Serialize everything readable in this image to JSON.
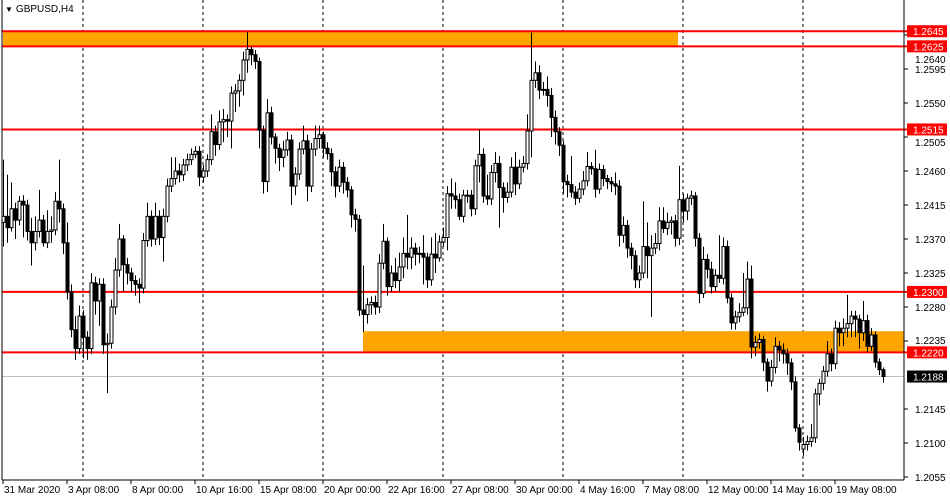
{
  "header": {
    "symbol_timeframe": "GBPUSD,H4",
    "menu_icon": "triangle-down-icon"
  },
  "chart_data": {
    "type": "candlestick",
    "title": "GBPUSD,H4",
    "ylim": [
      1.2055,
      1.269
    ],
    "y_ticks": [
      "1.2640",
      "1.2595",
      "1.2550",
      "1.2505",
      "1.2460",
      "1.2415",
      "1.2370",
      "1.2325",
      "1.2280",
      "1.2235",
      "1.2145",
      "1.2100",
      "1.2055"
    ],
    "x_tick_labels": [
      "31 Mar 2020",
      "3 Apr 08:00",
      "8 Apr 00:00",
      "10 Apr 16:00",
      "15 Apr 08:00",
      "20 Apr 00:00",
      "22 Apr 16:00",
      "27 Apr 08:00",
      "30 Apr 00:00",
      "4 May 16:00",
      "7 May 08:00",
      "12 May 00:00",
      "14 May 16:00",
      "19 May 08:00"
    ],
    "grid": "vertical dashed",
    "colors": {
      "level_line": "#ff0000",
      "zone": "#ffa500",
      "bull_body": "#ffffff",
      "bear_body": "#000000",
      "current_price_line": "#c0c0c0",
      "current_price_label": "#000000"
    },
    "levels": [
      {
        "price": 1.2645,
        "label": "1.2645"
      },
      {
        "price": 1.2625,
        "label": "1.2625"
      },
      {
        "price": 1.2515,
        "label": "1.2515"
      },
      {
        "price": 1.23,
        "label": "1.2300"
      },
      {
        "price": 1.222,
        "label": "1.2220"
      }
    ],
    "zones": [
      {
        "from": 1.2625,
        "to": 1.2645
      },
      {
        "from": 1.222,
        "to": 1.2248
      }
    ],
    "current_price": {
      "price": 1.2188,
      "label": "1.2188"
    },
    "ohlc": [
      [
        1.2392,
        1.2475,
        1.236,
        1.24
      ],
      [
        1.24,
        1.2455,
        1.2365,
        1.2385
      ],
      [
        1.2385,
        1.2445,
        1.238,
        1.241
      ],
      [
        1.241,
        1.2418,
        1.237,
        1.2395
      ],
      [
        1.2395,
        1.2427,
        1.2388,
        1.242
      ],
      [
        1.242,
        1.2428,
        1.2372,
        1.2415
      ],
      [
        1.2415,
        1.2422,
        1.2368,
        1.238
      ],
      [
        1.238,
        1.2398,
        1.2335,
        1.2365
      ],
      [
        1.2365,
        1.24,
        1.2355,
        1.238
      ],
      [
        1.238,
        1.2435,
        1.2372,
        1.2395
      ],
      [
        1.2395,
        1.2402,
        1.236,
        1.2365
      ],
      [
        1.2365,
        1.2408,
        1.2358,
        1.238
      ],
      [
        1.238,
        1.24,
        1.2365,
        1.2382
      ],
      [
        1.2382,
        1.2432,
        1.2375,
        1.242
      ],
      [
        1.242,
        1.2475,
        1.2392,
        1.241
      ],
      [
        1.241,
        1.2417,
        1.235,
        1.2365
      ],
      [
        1.2365,
        1.2392,
        1.229,
        1.23
      ],
      [
        1.23,
        1.231,
        1.224,
        1.225
      ],
      [
        1.225,
        1.2268,
        1.221,
        1.2225
      ],
      [
        1.2225,
        1.2282,
        1.2218,
        1.2268
      ],
      [
        1.2268,
        1.2276,
        1.2212,
        1.224
      ],
      [
        1.224,
        1.2248,
        1.221,
        1.2225
      ],
      [
        1.2225,
        1.2325,
        1.2218,
        1.2312
      ],
      [
        1.2312,
        1.232,
        1.227,
        1.2288
      ],
      [
        1.2288,
        1.2318,
        1.2255,
        1.231
      ],
      [
        1.231,
        1.2318,
        1.2218,
        1.223
      ],
      [
        1.223,
        1.2245,
        1.2166,
        1.2232
      ],
      [
        1.2232,
        1.229,
        1.2225,
        1.228
      ],
      [
        1.228,
        1.2345,
        1.227,
        1.2329
      ],
      [
        1.2329,
        1.239,
        1.232,
        1.237
      ],
      [
        1.237,
        1.2375,
        1.23,
        1.2336
      ],
      [
        1.2336,
        1.2345,
        1.231,
        1.2325
      ],
      [
        1.2325,
        1.2332,
        1.23,
        1.2315
      ],
      [
        1.2315,
        1.2322,
        1.2295,
        1.231
      ],
      [
        1.231,
        1.2318,
        1.2285,
        1.2305
      ],
      [
        1.2305,
        1.2378,
        1.2298,
        1.2368
      ],
      [
        1.2368,
        1.2418,
        1.236,
        1.24
      ],
      [
        1.24,
        1.2408,
        1.236,
        1.237
      ],
      [
        1.237,
        1.2418,
        1.2362,
        1.24
      ],
      [
        1.24,
        1.2408,
        1.2362,
        1.2372
      ],
      [
        1.2372,
        1.241,
        1.234,
        1.24
      ],
      [
        1.24,
        1.245,
        1.2392,
        1.244
      ],
      [
        1.244,
        1.2478,
        1.2432,
        1.245
      ],
      [
        1.245,
        1.2478,
        1.2442,
        1.246
      ],
      [
        1.246,
        1.247,
        1.2445,
        1.2455
      ],
      [
        1.2455,
        1.2476,
        1.2447,
        1.2468
      ],
      [
        1.2468,
        1.2483,
        1.246,
        1.2475
      ],
      [
        1.2475,
        1.249,
        1.2468,
        1.2482
      ],
      [
        1.2482,
        1.2493,
        1.2477,
        1.2486
      ],
      [
        1.2486,
        1.2493,
        1.244,
        1.2452
      ],
      [
        1.2452,
        1.2468,
        1.2445,
        1.246
      ],
      [
        1.246,
        1.2482,
        1.2452,
        1.2475
      ],
      [
        1.2475,
        1.2535,
        1.2468,
        1.2512
      ],
      [
        1.2512,
        1.252,
        1.248,
        1.2495
      ],
      [
        1.2495,
        1.254,
        1.2488,
        1.2525
      ],
      [
        1.2525,
        1.2542,
        1.2498,
        1.2528
      ],
      [
        1.2528,
        1.2535,
        1.2505,
        1.2526
      ],
      [
        1.2526,
        1.2572,
        1.249,
        1.2563
      ],
      [
        1.2563,
        1.2575,
        1.2538,
        1.2566
      ],
      [
        1.2566,
        1.2588,
        1.2545,
        1.258
      ],
      [
        1.258,
        1.2618,
        1.256,
        1.2607
      ],
      [
        1.2607,
        1.2644,
        1.259,
        1.2621
      ],
      [
        1.2621,
        1.2625,
        1.26,
        1.2614
      ],
      [
        1.2614,
        1.262,
        1.2595,
        1.2605
      ],
      [
        1.2605,
        1.261,
        1.249,
        1.2514
      ],
      [
        1.2514,
        1.252,
        1.243,
        1.2446
      ],
      [
        1.2446,
        1.2555,
        1.2432,
        1.2537
      ],
      [
        1.2537,
        1.2545,
        1.2495,
        1.2505
      ],
      [
        1.2505,
        1.251,
        1.247,
        1.249
      ],
      [
        1.249,
        1.2496,
        1.246,
        1.2478
      ],
      [
        1.2478,
        1.25,
        1.2465,
        1.2488
      ],
      [
        1.2488,
        1.2512,
        1.248,
        1.2501
      ],
      [
        1.2501,
        1.2508,
        1.2415,
        1.244
      ],
      [
        1.244,
        1.2465,
        1.2428,
        1.2456
      ],
      [
        1.2456,
        1.2498,
        1.2448,
        1.2489
      ],
      [
        1.2489,
        1.252,
        1.2482,
        1.25
      ],
      [
        1.25,
        1.2508,
        1.242,
        1.244
      ],
      [
        1.244,
        1.2497,
        1.2432,
        1.2489
      ],
      [
        1.2489,
        1.252,
        1.248,
        1.2503
      ],
      [
        1.2503,
        1.252,
        1.249,
        1.2508
      ],
      [
        1.2508,
        1.2512,
        1.2478,
        1.249
      ],
      [
        1.249,
        1.2498,
        1.2475,
        1.2483
      ],
      [
        1.2483,
        1.249,
        1.244,
        1.2459
      ],
      [
        1.2459,
        1.2466,
        1.2425,
        1.244
      ],
      [
        1.244,
        1.2475,
        1.2432,
        1.2465
      ],
      [
        1.2465,
        1.2472,
        1.243,
        1.2445
      ],
      [
        1.2445,
        1.2452,
        1.2425,
        1.2435
      ],
      [
        1.2435,
        1.244,
        1.2385,
        1.2402
      ],
      [
        1.2402,
        1.241,
        1.238,
        1.2396
      ],
      [
        1.2396,
        1.2402,
        1.2268,
        1.2276
      ],
      [
        1.2276,
        1.2335,
        1.2247,
        1.227
      ],
      [
        1.227,
        1.2292,
        1.2258,
        1.2283
      ],
      [
        1.2283,
        1.2294,
        1.227,
        1.2286
      ],
      [
        1.2286,
        1.2295,
        1.227,
        1.228
      ],
      [
        1.228,
        1.235,
        1.2272,
        1.2338
      ],
      [
        1.2338,
        1.239,
        1.233,
        1.2367
      ],
      [
        1.2367,
        1.2372,
        1.2295,
        1.2307
      ],
      [
        1.2307,
        1.2335,
        1.23,
        1.2325
      ],
      [
        1.2325,
        1.2345,
        1.2305,
        1.2315
      ],
      [
        1.2315,
        1.2352,
        1.23,
        1.2333
      ],
      [
        1.2333,
        1.2372,
        1.2318,
        1.2351
      ],
      [
        1.2351,
        1.2402,
        1.233,
        1.2346
      ],
      [
        1.2346,
        1.2372,
        1.233,
        1.2358
      ],
      [
        1.2358,
        1.2365,
        1.2335,
        1.235
      ],
      [
        1.235,
        1.236,
        1.2338,
        1.2351
      ],
      [
        1.2351,
        1.2375,
        1.231,
        1.2346
      ],
      [
        1.2346,
        1.2352,
        1.2305,
        1.2316
      ],
      [
        1.2316,
        1.2372,
        1.2308,
        1.235
      ],
      [
        1.235,
        1.2378,
        1.2325,
        1.2345
      ],
      [
        1.2345,
        1.2375,
        1.234,
        1.2366
      ],
      [
        1.2366,
        1.2385,
        1.236,
        1.2372
      ],
      [
        1.2372,
        1.244,
        1.2355,
        1.243
      ],
      [
        1.243,
        1.245,
        1.241,
        1.2427
      ],
      [
        1.2427,
        1.2445,
        1.241,
        1.2422
      ],
      [
        1.2422,
        1.243,
        1.2395,
        1.24
      ],
      [
        1.24,
        1.2435,
        1.2392,
        1.2428
      ],
      [
        1.2428,
        1.2435,
        1.2418,
        1.2428
      ],
      [
        1.2428,
        1.2435,
        1.24,
        1.241
      ],
      [
        1.241,
        1.2475,
        1.2402,
        1.2467
      ],
      [
        1.2467,
        1.2515,
        1.2445,
        1.2482
      ],
      [
        1.2482,
        1.249,
        1.2418,
        1.2427
      ],
      [
        1.2427,
        1.2455,
        1.2415,
        1.2423
      ],
      [
        1.2423,
        1.2468,
        1.2415,
        1.2458
      ],
      [
        1.2458,
        1.2485,
        1.2445,
        1.247
      ],
      [
        1.247,
        1.248,
        1.2385,
        1.2438
      ],
      [
        1.2438,
        1.2445,
        1.2405,
        1.2425
      ],
      [
        1.2425,
        1.2445,
        1.2418,
        1.2432
      ],
      [
        1.2432,
        1.2478,
        1.2425,
        1.2465
      ],
      [
        1.2465,
        1.2485,
        1.2428,
        1.2443
      ],
      [
        1.2443,
        1.2475,
        1.2436,
        1.2465
      ],
      [
        1.2465,
        1.248,
        1.2458,
        1.247
      ],
      [
        1.247,
        1.2535,
        1.2462,
        1.2513
      ],
      [
        1.2513,
        1.2643,
        1.2478,
        1.258
      ],
      [
        1.258,
        1.2605,
        1.257,
        1.259
      ],
      [
        1.259,
        1.26,
        1.2555,
        1.2567
      ],
      [
        1.2567,
        1.2578,
        1.256,
        1.2568
      ],
      [
        1.2568,
        1.2585,
        1.2545,
        1.256
      ],
      [
        1.256,
        1.257,
        1.2505,
        1.2531
      ],
      [
        1.2531,
        1.254,
        1.2495,
        1.2512
      ],
      [
        1.2512,
        1.2518,
        1.248,
        1.2494
      ],
      [
        1.2494,
        1.25,
        1.243,
        1.2446
      ],
      [
        1.2446,
        1.2455,
        1.2425,
        1.2442
      ],
      [
        1.2442,
        1.248,
        1.2425,
        1.2432
      ],
      [
        1.2432,
        1.244,
        1.2415,
        1.2424
      ],
      [
        1.2424,
        1.2445,
        1.2418,
        1.2436
      ],
      [
        1.2436,
        1.246,
        1.2428,
        1.2447
      ],
      [
        1.2447,
        1.2485,
        1.244,
        1.2466
      ],
      [
        1.2466,
        1.2472,
        1.2455,
        1.2463
      ],
      [
        1.2463,
        1.2488,
        1.2425,
        1.2436
      ],
      [
        1.2436,
        1.247,
        1.243,
        1.2462
      ],
      [
        1.2462,
        1.2468,
        1.244,
        1.245
      ],
      [
        1.245,
        1.2455,
        1.2436,
        1.2446
      ],
      [
        1.2446,
        1.2452,
        1.2432,
        1.2443
      ],
      [
        1.2443,
        1.2458,
        1.2428,
        1.244
      ],
      [
        1.244,
        1.2448,
        1.236,
        1.2375
      ],
      [
        1.2375,
        1.24,
        1.2365,
        1.2388
      ],
      [
        1.2388,
        1.2395,
        1.2345,
        1.2358
      ],
      [
        1.2358,
        1.2365,
        1.233,
        1.2348
      ],
      [
        1.2348,
        1.2355,
        1.2305,
        1.2316
      ],
      [
        1.2316,
        1.2335,
        1.2305,
        1.2325
      ],
      [
        1.2325,
        1.242,
        1.2318,
        1.236
      ],
      [
        1.236,
        1.2392,
        1.2318,
        1.2348
      ],
      [
        1.2348,
        1.2375,
        1.2267,
        1.2358
      ],
      [
        1.2358,
        1.2378,
        1.235,
        1.2364
      ],
      [
        1.2364,
        1.2412,
        1.2355,
        1.2394
      ],
      [
        1.2394,
        1.2412,
        1.2378,
        1.2384
      ],
      [
        1.2384,
        1.2405,
        1.2375,
        1.2392
      ],
      [
        1.2392,
        1.24,
        1.2376,
        1.2394
      ],
      [
        1.2394,
        1.2402,
        1.236,
        1.2371
      ],
      [
        1.2371,
        1.2467,
        1.2362,
        1.2422
      ],
      [
        1.2422,
        1.243,
        1.2392,
        1.2407
      ],
      [
        1.2407,
        1.243,
        1.2395,
        1.2424
      ],
      [
        1.2424,
        1.2434,
        1.2415,
        1.2427
      ],
      [
        1.2427,
        1.2432,
        1.236,
        1.2371
      ],
      [
        1.2371,
        1.2378,
        1.2285,
        1.2298
      ],
      [
        1.2298,
        1.236,
        1.2292,
        1.2343
      ],
      [
        1.2343,
        1.235,
        1.2318,
        1.233
      ],
      [
        1.233,
        1.234,
        1.2298,
        1.2307
      ],
      [
        1.2307,
        1.233,
        1.23,
        1.2322
      ],
      [
        1.2322,
        1.2375,
        1.2312,
        1.2318
      ],
      [
        1.2318,
        1.2372,
        1.231,
        1.236
      ],
      [
        1.236,
        1.2368,
        1.2285,
        1.2292
      ],
      [
        1.2292,
        1.2298,
        1.225,
        1.2259
      ],
      [
        1.2259,
        1.2275,
        1.225,
        1.2267
      ],
      [
        1.2267,
        1.2285,
        1.226,
        1.2273
      ],
      [
        1.2273,
        1.2325,
        1.2268,
        1.2279
      ],
      [
        1.2279,
        1.234,
        1.227,
        1.2317
      ],
      [
        1.2317,
        1.2335,
        1.2212,
        1.2227
      ],
      [
        1.2227,
        1.2242,
        1.2215,
        1.2233
      ],
      [
        1.2233,
        1.2245,
        1.2225,
        1.2237
      ],
      [
        1.2237,
        1.2242,
        1.2195,
        1.2207
      ],
      [
        1.2207,
        1.2212,
        1.2168,
        1.2182
      ],
      [
        1.2182,
        1.221,
        1.2175,
        1.22
      ],
      [
        1.22,
        1.224,
        1.2192,
        1.2228
      ],
      [
        1.2228,
        1.2235,
        1.2208,
        1.2223
      ],
      [
        1.2223,
        1.2232,
        1.2205,
        1.2218
      ],
      [
        1.2218,
        1.2225,
        1.219,
        1.2206
      ],
      [
        1.2206,
        1.2212,
        1.217,
        1.2181
      ],
      [
        1.2181,
        1.2188,
        1.2115,
        1.212
      ],
      [
        1.212,
        1.2125,
        1.209,
        1.2101
      ],
      [
        1.2092,
        1.2108,
        1.2083,
        1.2098
      ],
      [
        1.2098,
        1.211,
        1.209,
        1.2102
      ],
      [
        1.2102,
        1.2125,
        1.2095,
        1.2107
      ],
      [
        1.2107,
        1.2172,
        1.21,
        1.2165
      ],
      [
        1.2165,
        1.2185,
        1.215,
        1.2179
      ],
      [
        1.2179,
        1.2202,
        1.217,
        1.2195
      ],
      [
        1.2195,
        1.2235,
        1.2188,
        1.2218
      ],
      [
        1.2218,
        1.2225,
        1.2195,
        1.2205
      ],
      [
        1.2205,
        1.2262,
        1.2198,
        1.2252
      ],
      [
        1.2252,
        1.226,
        1.2228,
        1.2246
      ],
      [
        1.2246,
        1.2265,
        1.2228,
        1.2252
      ],
      [
        1.2252,
        1.2296,
        1.224,
        1.2258
      ],
      [
        1.2258,
        1.2275,
        1.224,
        1.2268
      ],
      [
        1.2268,
        1.2275,
        1.224,
        1.2264
      ],
      [
        1.2264,
        1.227,
        1.2225,
        1.2246
      ],
      [
        1.2246,
        1.2288,
        1.2235,
        1.2262
      ],
      [
        1.2262,
        1.227,
        1.222,
        1.2228
      ],
      [
        1.2228,
        1.2252,
        1.2222,
        1.2243
      ],
      [
        1.2243,
        1.2248,
        1.22,
        1.2207
      ],
      [
        1.2207,
        1.2212,
        1.219,
        1.2197
      ],
      [
        1.2197,
        1.22,
        1.218,
        1.2188
      ]
    ]
  }
}
